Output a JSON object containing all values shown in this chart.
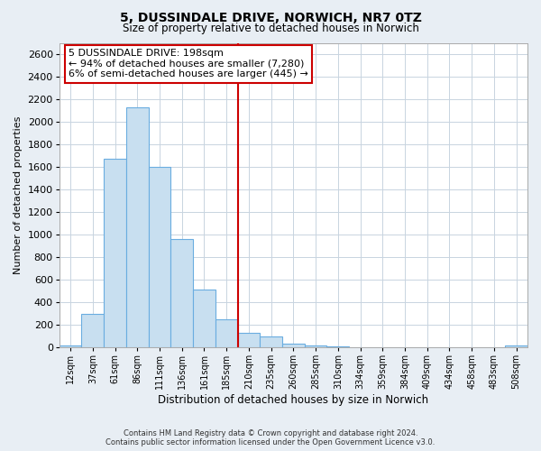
{
  "title": "5, DUSSINDALE DRIVE, NORWICH, NR7 0TZ",
  "subtitle": "Size of property relative to detached houses in Norwich",
  "xlabel": "Distribution of detached houses by size in Norwich",
  "ylabel": "Number of detached properties",
  "bin_labels": [
    "12sqm",
    "37sqm",
    "61sqm",
    "86sqm",
    "111sqm",
    "136sqm",
    "161sqm",
    "185sqm",
    "210sqm",
    "235sqm",
    "260sqm",
    "285sqm",
    "310sqm",
    "334sqm",
    "359sqm",
    "384sqm",
    "409sqm",
    "434sqm",
    "458sqm",
    "483sqm",
    "508sqm"
  ],
  "bar_heights": [
    20,
    295,
    1670,
    2130,
    1600,
    960,
    510,
    250,
    130,
    100,
    35,
    15,
    5,
    2,
    2,
    1,
    1,
    0,
    0,
    0,
    20
  ],
  "bar_color": "#c8dff0",
  "bar_edge_color": "#6aade0",
  "vline_color": "#cc0000",
  "vline_position": 8.0,
  "annotation_title": "5 DUSSINDALE DRIVE: 198sqm",
  "annotation_line1": "← 94% of detached houses are smaller (7,280)",
  "annotation_line2": "6% of semi-detached houses are larger (445) →",
  "annotation_box_color": "#ffffff",
  "annotation_box_edge": "#cc0000",
  "ylim": [
    0,
    2700
  ],
  "yticks": [
    0,
    200,
    400,
    600,
    800,
    1000,
    1200,
    1400,
    1600,
    1800,
    2000,
    2200,
    2400,
    2600
  ],
  "footer_line1": "Contains HM Land Registry data © Crown copyright and database right 2024.",
  "footer_line2": "Contains public sector information licensed under the Open Government Licence v3.0.",
  "bg_color": "#e8eef4",
  "plot_bg_color": "#ffffff",
  "grid_color": "#c8d4e0"
}
